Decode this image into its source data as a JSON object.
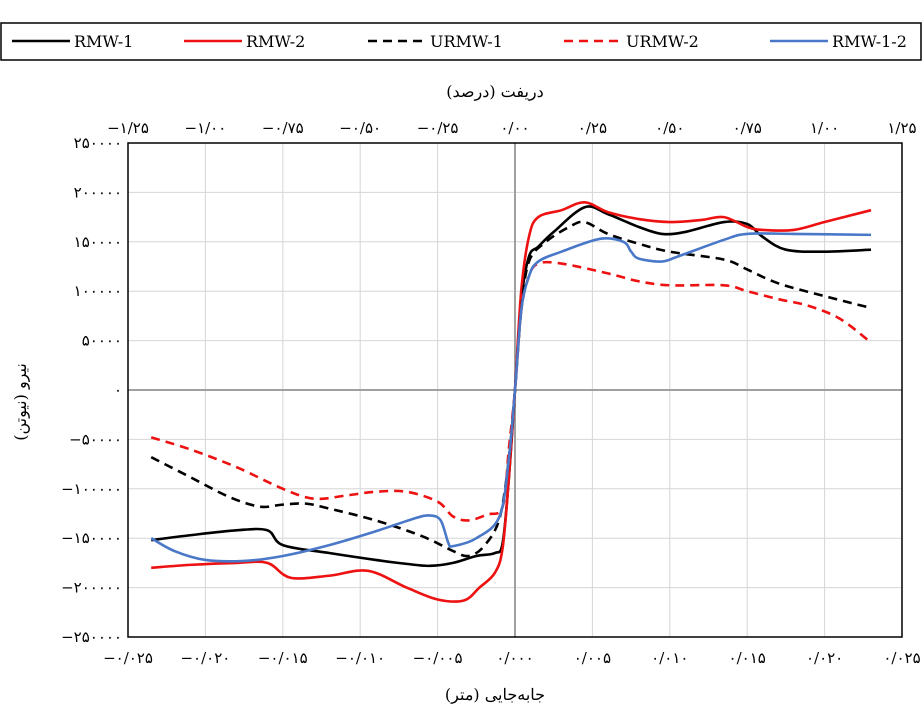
{
  "chart_data": {
    "type": "line",
    "xlabel": "جابه‌جایی (متر)",
    "ylabel": "نیرو (نیوتن)",
    "x2label": "دریفت (درصد)",
    "xlim": [
      -0.025,
      0.025
    ],
    "ylim": [
      -250000,
      250000
    ],
    "x2lim": [
      -1.25,
      1.25
    ],
    "x_ticks": [
      -0.025,
      -0.02,
      -0.015,
      -0.01,
      -0.005,
      0,
      0.005,
      0.01,
      0.015,
      0.02,
      0.025
    ],
    "x_tick_labels": [
      "−۰/۰۲۵",
      "−۰/۰۲۰",
      "−۰/۰۱۵",
      "−۰/۰۱۰",
      "−۰/۰۰۵",
      "۰/۰۰۰",
      "۰/۰۰۵",
      "۰/۰۱۰",
      "۰/۰۱۵",
      "۰/۰۲۰",
      "۰/۰۲۵"
    ],
    "y_ticks": [
      -250000,
      -200000,
      -150000,
      -100000,
      -50000,
      0,
      50000,
      100000,
      150000,
      200000,
      250000
    ],
    "y_tick_labels": [
      "−۲۵۰۰۰۰",
      "−۲۰۰۰۰۰",
      "−۱۵۰۰۰۰",
      "−۱۰۰۰۰۰",
      "−۵۰۰۰۰",
      "۰",
      "۵۰۰۰۰",
      "۱۰۰۰۰۰",
      "۱۵۰۰۰۰",
      "۲۰۰۰۰۰",
      "۲۵۰۰۰۰"
    ],
    "x2_ticks": [
      -1.25,
      -1.0,
      -0.75,
      -0.5,
      -0.25,
      0,
      0.25,
      0.5,
      0.75,
      1.0,
      1.25
    ],
    "x2_tick_labels": [
      "−۱/۲۵",
      "−۱/۰۰",
      "−۰/۷۵",
      "−۰/۵۰",
      "−۰/۲۵",
      "۰/۰۰",
      "۰/۲۵",
      "۰/۵۰",
      "۰/۷۵",
      "۱/۰۰",
      "۱/۲۵"
    ],
    "grid": true,
    "legend_position": "top",
    "series": [
      {
        "name": "RMW-1",
        "color": "#000000",
        "dash": "solid",
        "points": [
          [
            -0.0235,
            -152000
          ],
          [
            -0.021,
            -147000
          ],
          [
            -0.018,
            -142000
          ],
          [
            -0.016,
            -142000
          ],
          [
            -0.015,
            -157000
          ],
          [
            -0.012,
            -165000
          ],
          [
            -0.009,
            -172000
          ],
          [
            -0.007,
            -176000
          ],
          [
            -0.0055,
            -178000
          ],
          [
            -0.004,
            -175000
          ],
          [
            -0.0025,
            -168000
          ],
          [
            -0.0013,
            -165000
          ],
          [
            -0.0008,
            -155000
          ],
          [
            -0.0004,
            -90000
          ],
          [
            0,
            0
          ],
          [
            0.0004,
            90000
          ],
          [
            0.0009,
            135000
          ],
          [
            0.0015,
            145000
          ],
          [
            0.0025,
            160000
          ],
          [
            0.0045,
            185000
          ],
          [
            0.006,
            178000
          ],
          [
            0.008,
            165000
          ],
          [
            0.0095,
            158000
          ],
          [
            0.011,
            160000
          ],
          [
            0.0135,
            170000
          ],
          [
            0.015,
            168000
          ],
          [
            0.016,
            155000
          ],
          [
            0.0175,
            142000
          ],
          [
            0.02,
            140000
          ],
          [
            0.023,
            142000
          ]
        ]
      },
      {
        "name": "RMW-2",
        "color": "#ee1111",
        "dash": "solid",
        "points": [
          [
            -0.0235,
            -180000
          ],
          [
            -0.021,
            -177000
          ],
          [
            -0.018,
            -175000
          ],
          [
            -0.016,
            -175000
          ],
          [
            -0.0145,
            -190000
          ],
          [
            -0.012,
            -188000
          ],
          [
            -0.0095,
            -183000
          ],
          [
            -0.007,
            -200000
          ],
          [
            -0.005,
            -212000
          ],
          [
            -0.0033,
            -213000
          ],
          [
            -0.0023,
            -200000
          ],
          [
            -0.0013,
            -185000
          ],
          [
            -0.0008,
            -160000
          ],
          [
            -0.0004,
            -90000
          ],
          [
            0,
            0
          ],
          [
            0.0004,
            100000
          ],
          [
            0.0009,
            155000
          ],
          [
            0.0015,
            175000
          ],
          [
            0.003,
            182000
          ],
          [
            0.0045,
            190000
          ],
          [
            0.006,
            180000
          ],
          [
            0.008,
            173000
          ],
          [
            0.01,
            170000
          ],
          [
            0.012,
            172000
          ],
          [
            0.0135,
            175000
          ],
          [
            0.015,
            165000
          ],
          [
            0.016,
            162000
          ],
          [
            0.018,
            162000
          ],
          [
            0.02,
            170000
          ],
          [
            0.023,
            182000
          ]
        ]
      },
      {
        "name": "URMW-1",
        "color": "#000000",
        "dash": "dashed",
        "points": [
          [
            -0.0235,
            -68000
          ],
          [
            -0.021,
            -88000
          ],
          [
            -0.0185,
            -108000
          ],
          [
            -0.0165,
            -118000
          ],
          [
            -0.015,
            -116000
          ],
          [
            -0.0135,
            -115000
          ],
          [
            -0.012,
            -120000
          ],
          [
            -0.009,
            -132000
          ],
          [
            -0.006,
            -148000
          ],
          [
            -0.004,
            -163000
          ],
          [
            -0.003,
            -168000
          ],
          [
            -0.002,
            -158000
          ],
          [
            -0.001,
            -130000
          ],
          [
            -0.0004,
            -70000
          ],
          [
            0,
            0
          ],
          [
            0.0004,
            80000
          ],
          [
            0.0009,
            130000
          ],
          [
            0.002,
            150000
          ],
          [
            0.0035,
            165000
          ],
          [
            0.0045,
            170000
          ],
          [
            0.006,
            158000
          ],
          [
            0.008,
            148000
          ],
          [
            0.01,
            140000
          ],
          [
            0.0135,
            132000
          ],
          [
            0.015,
            122000
          ],
          [
            0.017,
            108000
          ],
          [
            0.02,
            95000
          ],
          [
            0.023,
            83000
          ]
        ]
      },
      {
        "name": "URMW-2",
        "color": "#ee1111",
        "dash": "dashed",
        "points": [
          [
            -0.0235,
            -48000
          ],
          [
            -0.021,
            -60000
          ],
          [
            -0.018,
            -78000
          ],
          [
            -0.015,
            -100000
          ],
          [
            -0.013,
            -110000
          ],
          [
            -0.011,
            -107000
          ],
          [
            -0.009,
            -103000
          ],
          [
            -0.007,
            -103000
          ],
          [
            -0.005,
            -113000
          ],
          [
            -0.004,
            -128000
          ],
          [
            -0.003,
            -132000
          ],
          [
            -0.0018,
            -126000
          ],
          [
            -0.0008,
            -118000
          ],
          [
            -0.0004,
            -60000
          ],
          [
            0,
            0
          ],
          [
            0.0004,
            80000
          ],
          [
            0.0009,
            115000
          ],
          [
            0.0015,
            128000
          ],
          [
            0.003,
            128000
          ],
          [
            0.006,
            118000
          ],
          [
            0.008,
            110000
          ],
          [
            0.01,
            106000
          ],
          [
            0.0135,
            106000
          ],
          [
            0.015,
            100000
          ],
          [
            0.017,
            92000
          ],
          [
            0.019,
            85000
          ],
          [
            0.021,
            72000
          ],
          [
            0.023,
            48000
          ]
        ]
      },
      {
        "name": "RMW-1-2",
        "color": "#4a78c8",
        "dash": "solid",
        "points": [
          [
            -0.0235,
            -150000
          ],
          [
            -0.022,
            -163000
          ],
          [
            -0.02,
            -172000
          ],
          [
            -0.0175,
            -173000
          ],
          [
            -0.015,
            -168000
          ],
          [
            -0.012,
            -157000
          ],
          [
            -0.009,
            -143000
          ],
          [
            -0.0065,
            -130000
          ],
          [
            -0.0055,
            -127000
          ],
          [
            -0.0048,
            -132000
          ],
          [
            -0.0043,
            -155000
          ],
          [
            -0.004,
            -158000
          ],
          [
            -0.0025,
            -150000
          ],
          [
            -0.001,
            -128000
          ],
          [
            -0.0004,
            -70000
          ],
          [
            0,
            0
          ],
          [
            0.0004,
            80000
          ],
          [
            0.0009,
            115000
          ],
          [
            0.0015,
            130000
          ],
          [
            0.003,
            140000
          ],
          [
            0.0055,
            153000
          ],
          [
            0.007,
            150000
          ],
          [
            0.0075,
            140000
          ],
          [
            0.008,
            133000
          ],
          [
            0.0095,
            130000
          ],
          [
            0.0105,
            135000
          ],
          [
            0.0135,
            152000
          ],
          [
            0.015,
            158000
          ],
          [
            0.018,
            158000
          ],
          [
            0.023,
            157000
          ]
        ]
      }
    ]
  }
}
